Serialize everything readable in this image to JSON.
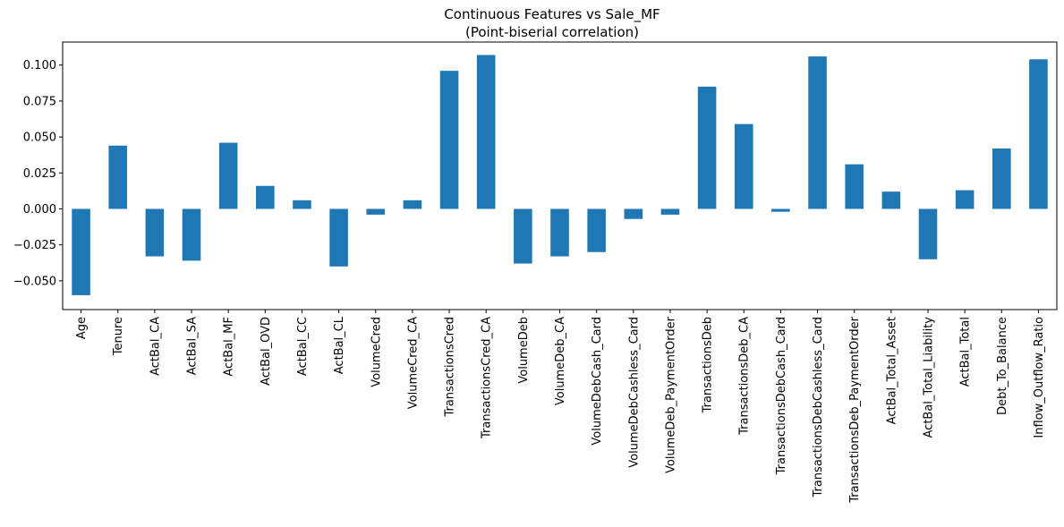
{
  "chart_data": {
    "type": "bar",
    "title": "Continuous Features vs Sale_MF",
    "subtitle": "(Point-biserial correlation)",
    "xlabel": "",
    "ylabel": "",
    "ylim": [
      -0.07,
      0.116
    ],
    "yticks": [
      -0.05,
      -0.025,
      0.0,
      0.025,
      0.05,
      0.075,
      0.1
    ],
    "ytick_labels": [
      "−0.050",
      "−0.025",
      "0.000",
      "0.025",
      "0.050",
      "0.075",
      "0.100"
    ],
    "grid": false,
    "color": "#1f77b4",
    "categories": [
      "Age",
      "Tenure",
      "ActBal_CA",
      "ActBal_SA",
      "ActBal_MF",
      "ActBal_OVD",
      "ActBal_CC",
      "ActBal_CL",
      "VolumeCred",
      "VolumeCred_CA",
      "TransactionsCred",
      "TransactionsCred_CA",
      "VolumeDeb",
      "VolumeDeb_CA",
      "VolumeDebCash_Card",
      "VolumeDebCashless_Card",
      "VolumeDeb_PaymentOrder",
      "TransactionsDeb",
      "TransactionsDeb_CA",
      "TransactionsDebCash_Card",
      "TransactionsDebCashless_Card",
      "TransactionsDeb_PaymentOrder",
      "ActBal_Total_Asset",
      "ActBal_Total_Liability",
      "ActBal_Total",
      "Debt_To_Balance",
      "Inflow_Outflow_Ratio"
    ],
    "values": [
      -0.06,
      0.044,
      -0.033,
      -0.036,
      0.046,
      0.016,
      0.006,
      -0.04,
      -0.004,
      0.006,
      0.096,
      0.107,
      -0.038,
      -0.033,
      -0.03,
      -0.007,
      -0.004,
      0.085,
      0.059,
      -0.002,
      0.106,
      0.031,
      0.012,
      -0.035,
      0.013,
      0.042,
      0.104
    ]
  }
}
